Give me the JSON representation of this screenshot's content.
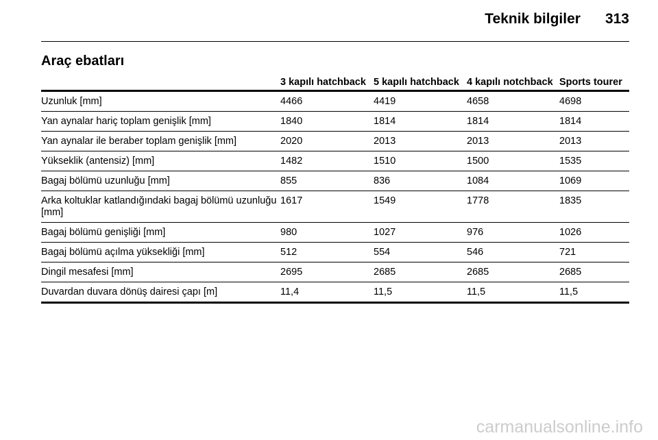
{
  "header": {
    "title": "Teknik bilgiler",
    "page_number": "313"
  },
  "section": {
    "title": "Araç ebatları"
  },
  "table": {
    "columns": [
      "3 kapılı hatchback",
      "5 kapılı hatchback",
      "4 kapılı notchback",
      "Sports tourer"
    ],
    "rows": [
      [
        "Uzunluk [mm]",
        "4466",
        "4419",
        "4658",
        "4698"
      ],
      [
        "Yan aynalar hariç toplam genişlik [mm]",
        "1840",
        "1814",
        "1814",
        "1814"
      ],
      [
        "Yan aynalar ile beraber toplam genişlik [mm]",
        "2020",
        "2013",
        "2013",
        "2013"
      ],
      [
        "Yükseklik (antensiz) [mm]",
        "1482",
        "1510",
        "1500",
        "1535"
      ],
      [
        "Bagaj bölümü uzunluğu [mm]",
        "855",
        "836",
        "1084",
        "1069"
      ],
      [
        "Arka koltuklar katlandığındaki bagaj bölümü uzunluğu [mm]",
        "1617",
        "1549",
        "1778",
        "1835"
      ],
      [
        "Bagaj bölümü genişliği [mm]",
        "980",
        "1027",
        "976",
        "1026"
      ],
      [
        "Bagaj bölümü açılma yüksekliği [mm]",
        "512",
        "554",
        "546",
        "721"
      ],
      [
        "Dingil mesafesi [mm]",
        "2695",
        "2685",
        "2685",
        "2685"
      ],
      [
        "Duvardan duvara dönüş dairesi çapı [m]",
        "11,4",
        "11,5",
        "11,5",
        "11,5"
      ]
    ]
  },
  "footer": {
    "watermark": "carmanualsonline.info"
  }
}
